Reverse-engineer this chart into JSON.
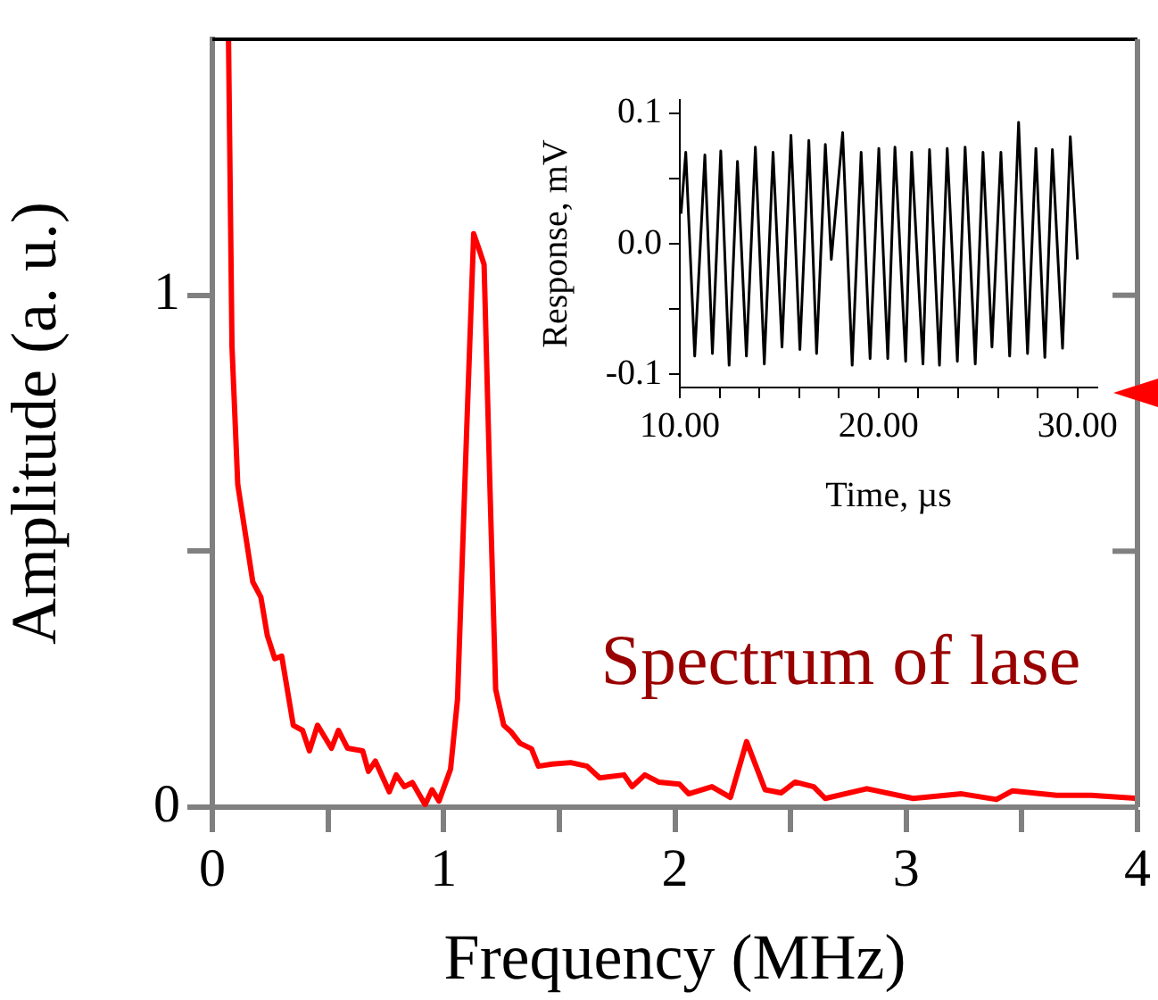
{
  "chart_data": [
    {
      "type": "line",
      "xlabel": "Frequency (MHz)",
      "ylabel": "Amplitude (a. u.)",
      "xlim": [
        0,
        4
      ],
      "ylim": [
        0,
        1.5
      ],
      "xticks": [
        0,
        {
          "value": 0.5,
          "label": null
        },
        1,
        {
          "value": 1.5,
          "label": null
        },
        2,
        {
          "value": 2.5,
          "label": null
        },
        3,
        {
          "value": 3.5,
          "label": null
        },
        4
      ],
      "yticks": [
        0,
        {
          "value": 0.5,
          "label": null
        },
        1
      ],
      "marker": "none",
      "annotations": [
        "Spectrum of lase"
      ],
      "series": [
        {
          "color": "#ff0000",
          "x": [
            0.07,
            0.085,
            0.11,
            0.175,
            0.21,
            0.238,
            0.27,
            0.3,
            0.35,
            0.39,
            0.42,
            0.455,
            0.515,
            0.545,
            0.585,
            0.65,
            0.675,
            0.705,
            0.765,
            0.795,
            0.83,
            0.865,
            0.92,
            0.95,
            0.98,
            1.03,
            1.06,
            1.1,
            1.13,
            1.15,
            1.175,
            1.2,
            1.225,
            1.26,
            1.29,
            1.33,
            1.38,
            1.41,
            1.47,
            1.55,
            1.62,
            1.675,
            1.78,
            1.815,
            1.87,
            1.93,
            2.02,
            2.06,
            2.16,
            2.24,
            2.31,
            2.39,
            2.46,
            2.52,
            2.6,
            2.65,
            2.83,
            3.03,
            3.24,
            3.39,
            3.46,
            3.65,
            3.8,
            4.0
          ],
          "values": [
            1.5,
            0.9,
            0.63,
            0.44,
            0.41,
            0.335,
            0.29,
            0.295,
            0.16,
            0.15,
            0.11,
            0.16,
            0.115,
            0.15,
            0.115,
            0.11,
            0.07,
            0.09,
            0.03,
            0.063,
            0.04,
            0.048,
            0.005,
            0.034,
            0.012,
            0.074,
            0.21,
            0.74,
            1.12,
            1.094,
            1.06,
            0.63,
            0.23,
            0.16,
            0.148,
            0.125,
            0.114,
            0.08,
            0.084,
            0.087,
            0.08,
            0.057,
            0.063,
            0.04,
            0.063,
            0.049,
            0.045,
            0.026,
            0.04,
            0.019,
            0.128,
            0.034,
            0.028,
            0.049,
            0.04,
            0.017,
            0.036,
            0.017,
            0.026,
            0.015,
            0.032,
            0.023,
            0.023,
            0.017
          ]
        }
      ]
    },
    {
      "type": "line",
      "xlabel": "Time, µs",
      "ylabel": "Response, mV",
      "xlim": [
        10,
        31
      ],
      "ylim": [
        -0.11,
        0.11
      ],
      "xticks": [
        {
          "value": 10,
          "label": "10.00"
        },
        {
          "value": 12,
          "label": null
        },
        {
          "value": 14,
          "label": null
        },
        {
          "value": 16,
          "label": null
        },
        {
          "value": 18,
          "label": null
        },
        {
          "value": 20,
          "label": "20.00"
        },
        {
          "value": 22,
          "label": null
        },
        {
          "value": 24,
          "label": null
        },
        {
          "value": 26,
          "label": null
        },
        {
          "value": 28,
          "label": null
        },
        {
          "value": 30,
          "label": "30.00"
        }
      ],
      "yticks": [
        {
          "value": -0.1,
          "label": "-0.1"
        },
        {
          "value": -0.05,
          "label": null
        },
        {
          "value": 0,
          "label": "0.0"
        },
        {
          "value": 0.05,
          "label": null
        },
        {
          "value": 0.1,
          "label": "0.1"
        }
      ],
      "marker": "none",
      "series": [
        {
          "color": "#000000",
          "x": [
            10.06,
            10.3,
            10.75,
            11.26,
            11.64,
            12.06,
            12.48,
            12.9,
            13.35,
            13.8,
            14.25,
            14.69,
            15.14,
            15.59,
            16.04,
            16.49,
            16.88,
            17.32,
            17.62,
            18.19,
            18.67,
            19.12,
            19.57,
            20.01,
            20.46,
            20.82,
            21.36,
            21.66,
            22.23,
            22.56,
            23.06,
            23.45,
            23.96,
            24.35,
            24.86,
            25.25,
            25.7,
            26.15,
            26.59,
            27.04,
            27.49,
            27.91,
            28.36,
            28.74,
            29.25,
            29.64,
            30.0
          ],
          "values": [
            0.023,
            0.07,
            -0.086,
            0.068,
            -0.084,
            0.071,
            -0.093,
            0.063,
            -0.086,
            0.074,
            -0.092,
            0.07,
            -0.079,
            0.083,
            -0.081,
            0.079,
            -0.084,
            0.076,
            -0.012,
            0.085,
            -0.093,
            0.07,
            -0.088,
            0.073,
            -0.088,
            0.074,
            -0.09,
            0.07,
            -0.092,
            0.072,
            -0.093,
            0.073,
            -0.09,
            0.074,
            -0.092,
            0.07,
            -0.079,
            0.07,
            -0.086,
            0.093,
            -0.084,
            0.073,
            -0.087,
            0.072,
            -0.08,
            0.082,
            -0.012
          ]
        }
      ]
    }
  ]
}
